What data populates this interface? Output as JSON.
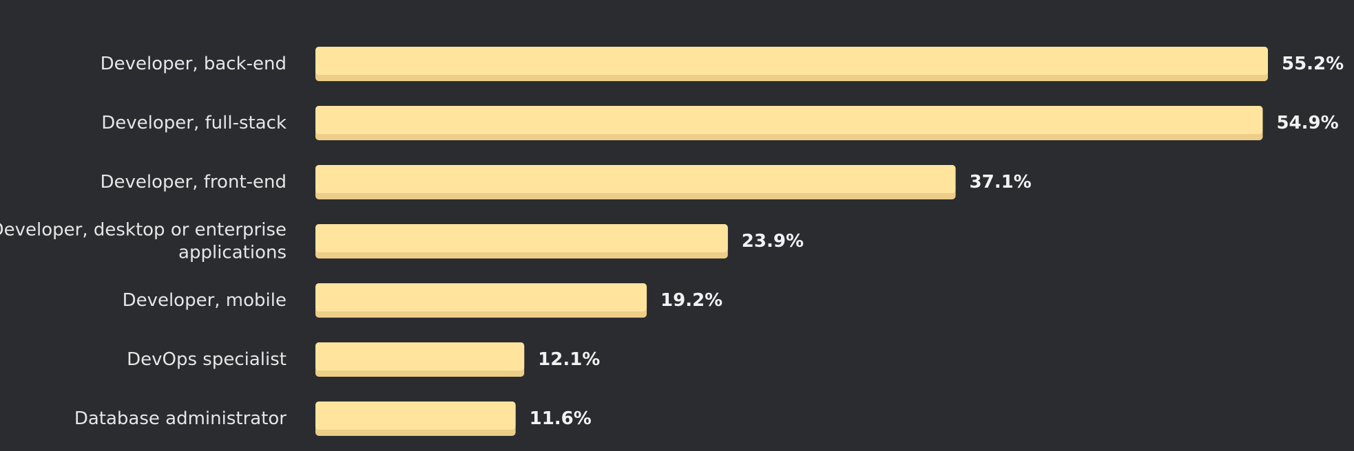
{
  "chart_data": {
    "type": "bar",
    "orientation": "horizontal",
    "categories": [
      "Developer, back-end",
      "Developer, full-stack",
      "Developer, front-end",
      "Developer, desktop or enterprise applications",
      "Developer, mobile",
      "DevOps specialist",
      "Database administrator"
    ],
    "category_lines": [
      [
        "Developer, back-end"
      ],
      [
        "Developer, full-stack"
      ],
      [
        "Developer, front-end"
      ],
      [
        "Developer, desktop or enterprise",
        "applications"
      ],
      [
        "Developer, mobile"
      ],
      [
        "DevOps specialist"
      ],
      [
        "Database administrator"
      ]
    ],
    "values": [
      55.2,
      54.9,
      37.1,
      23.9,
      19.2,
      12.1,
      11.6
    ],
    "value_labels": [
      "55.2%",
      "54.9%",
      "37.1%",
      "23.9%",
      "19.2%",
      "12.1%",
      "11.6%"
    ],
    "unit": "%",
    "title": "",
    "xlabel": "",
    "ylabel": "",
    "xlim": [
      0,
      55.2
    ],
    "grid": false,
    "legend": "none",
    "colors": {
      "background": "#2a2c30",
      "bar": "#ffe49e",
      "bar_shade": "#ecce88",
      "category_text": "#e6e6e6",
      "value_text": "#f2f2f2"
    }
  }
}
